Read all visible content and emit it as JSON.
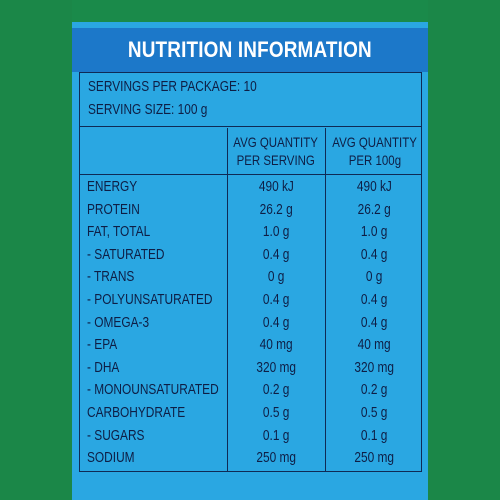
{
  "title": "NUTRITION INFORMATION",
  "servings_per_package": "SERVINGS PER PACKAGE: 10",
  "serving_size": "SERVING SIZE: 100 g",
  "columns": {
    "per_serving": [
      "AVG QUANTITY",
      "PER SERVING"
    ],
    "per_100g": [
      "AVG QUANTITY",
      "PER 100g"
    ]
  },
  "rows": [
    {
      "name": "ENERGY",
      "per_serving": "490 kJ",
      "per_100g": "490 kJ"
    },
    {
      "name": "PROTEIN",
      "per_serving": "26.2 g",
      "per_100g": "26.2 g"
    },
    {
      "name": "FAT, TOTAL",
      "per_serving": "1.0 g",
      "per_100g": "1.0 g"
    },
    {
      "name": "- SATURATED",
      "per_serving": "0.4 g",
      "per_100g": "0.4 g"
    },
    {
      "name": "- TRANS",
      "per_serving": "0 g",
      "per_100g": "0 g"
    },
    {
      "name": "- POLYUNSATURATED",
      "per_serving": "0.4 g",
      "per_100g": "0.4 g"
    },
    {
      "name": "- OMEGA-3",
      "per_serving": "0.4 g",
      "per_100g": "0.4 g"
    },
    {
      "name": "- EPA",
      "per_serving": "40 mg",
      "per_100g": "40 mg"
    },
    {
      "name": "- DHA",
      "per_serving": "320 mg",
      "per_100g": "320 mg"
    },
    {
      "name": "- MONOUNSATURATED",
      "per_serving": "0.2 g",
      "per_100g": "0.2 g"
    },
    {
      "name": "CARBOHYDRATE",
      "per_serving": "0.5 g",
      "per_100g": "0.5 g"
    },
    {
      "name": "- SUGARS",
      "per_serving": "0.1 g",
      "per_100g": "0.1 g"
    },
    {
      "name": "SODIUM",
      "per_serving": "250 mg",
      "per_100g": "250 mg"
    }
  ],
  "colors": {
    "background_green": "#1b8748",
    "panel_blue": "#2aa7e2",
    "title_blue": "#1c78c9",
    "text_navy": "#0e1e45"
  }
}
